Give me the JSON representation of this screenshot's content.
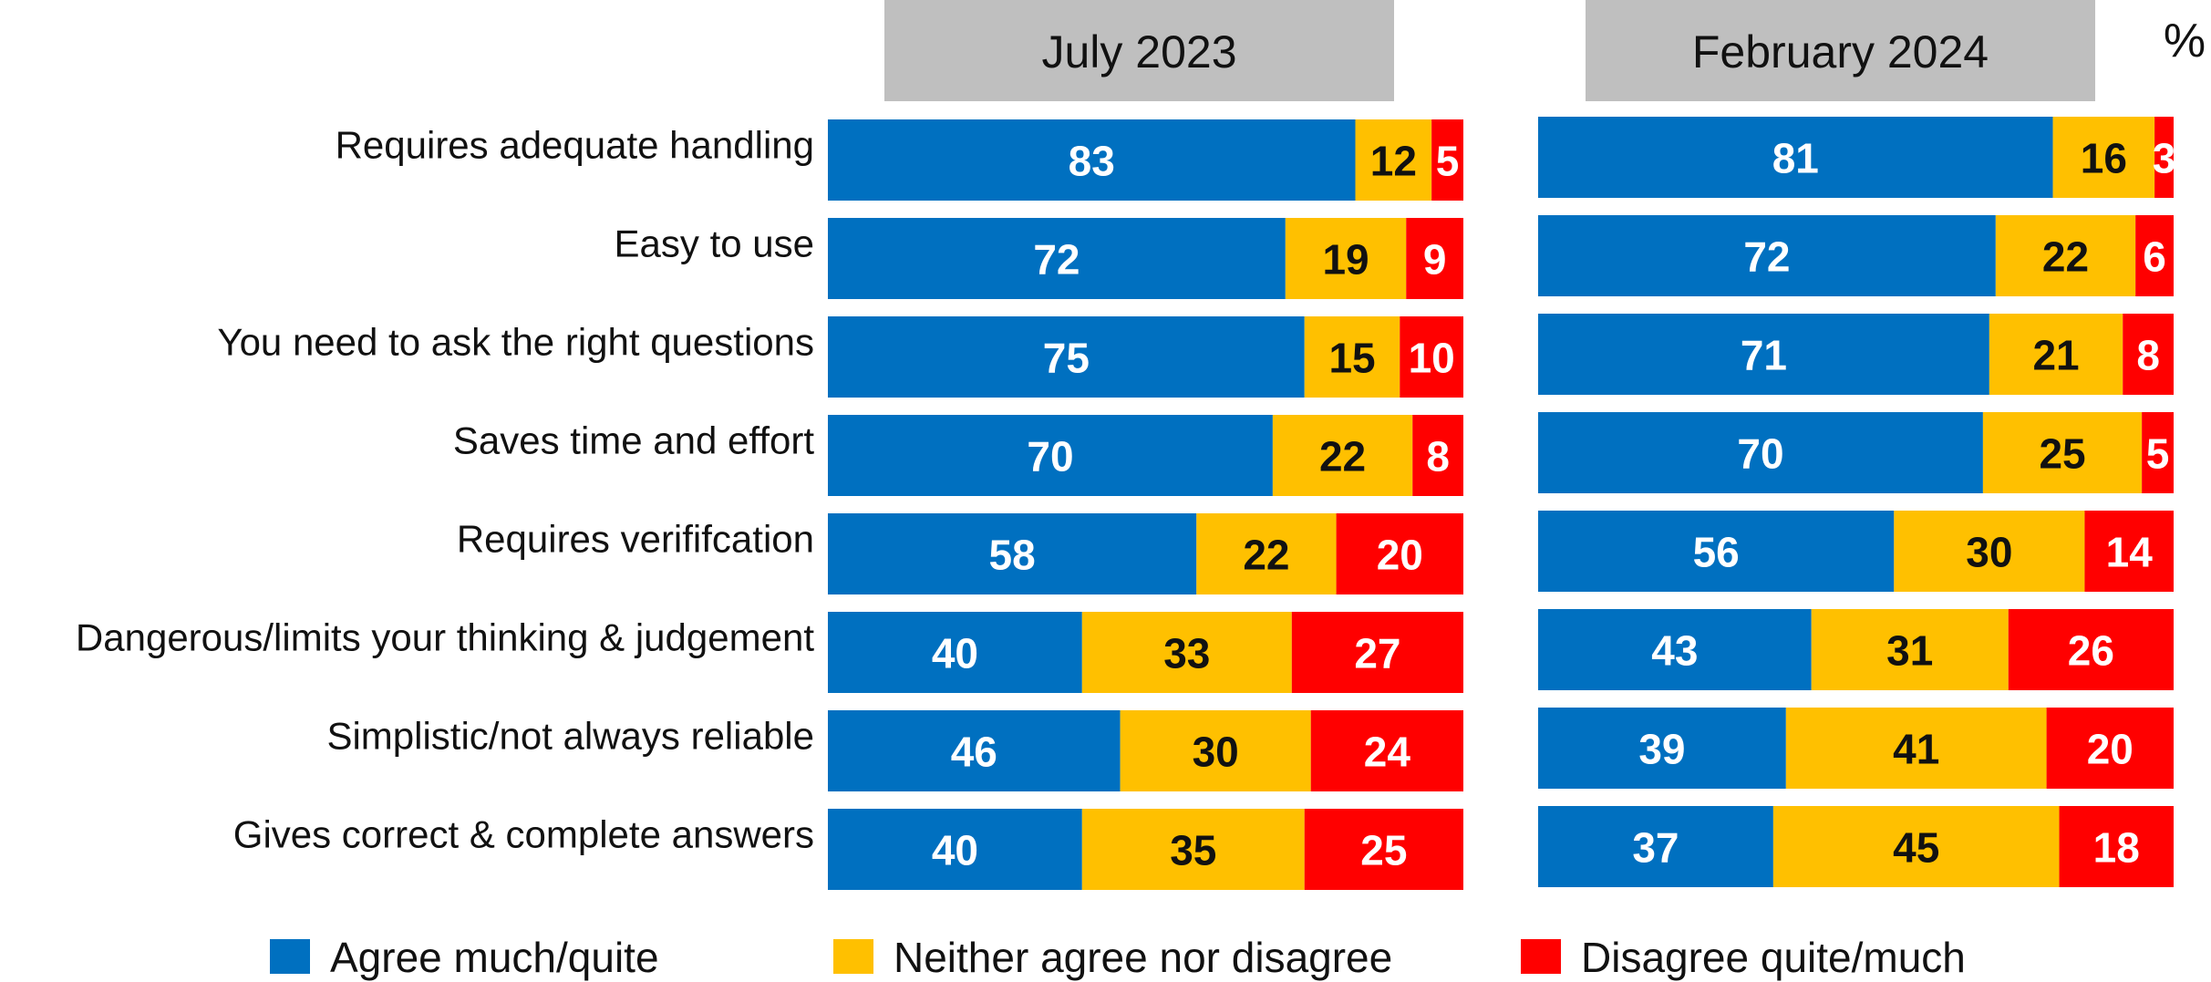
{
  "chart_data": {
    "type": "bar",
    "orientation": "horizontal",
    "stacked": true,
    "unit": "%",
    "categories": [
      "Requires adequate handling",
      "Easy to use",
      "You need to ask the right questions",
      "Saves time and effort",
      "Requires verififcation",
      "Dangerous/limits your thinking & judgement",
      "Simplistic/not always reliable",
      "Gives correct & complete answers"
    ],
    "panels": [
      {
        "title": "July 2023",
        "series": [
          {
            "name": "Agree much/quite",
            "values": [
              83,
              72,
              75,
              70,
              58,
              40,
              46,
              40
            ]
          },
          {
            "name": "Neither agree nor disagree",
            "values": [
              12,
              19,
              15,
              22,
              22,
              33,
              30,
              35
            ]
          },
          {
            "name": "Disagree quite/much",
            "values": [
              5,
              9,
              10,
              8,
              20,
              27,
              24,
              25
            ]
          }
        ]
      },
      {
        "title": "February 2024",
        "series": [
          {
            "name": "Agree much/quite",
            "values": [
              81,
              72,
              71,
              70,
              56,
              43,
              39,
              37
            ]
          },
          {
            "name": "Neither agree nor disagree",
            "values": [
              16,
              22,
              21,
              25,
              30,
              31,
              41,
              45
            ]
          },
          {
            "name": "Disagree quite/much",
            "values": [
              3,
              6,
              8,
              5,
              14,
              26,
              20,
              18
            ]
          }
        ]
      }
    ],
    "colors": [
      "#0070c0",
      "#ffc000",
      "#ff0000"
    ],
    "label_colors": [
      "#ffffff",
      "#111111",
      "#ffffff"
    ],
    "panel_header_color": "#bfbfbf",
    "xlim": [
      0,
      100
    ],
    "grid": false,
    "legend_position": "bottom"
  }
}
